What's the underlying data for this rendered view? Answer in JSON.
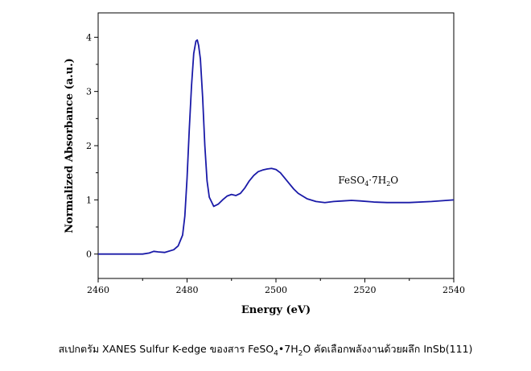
{
  "chart_data": {
    "type": "line",
    "xlabel": "Energy (eV)",
    "ylabel": "Normalized Absorbance (a.u.)",
    "xlim": [
      2460,
      2540
    ],
    "ylim": [
      -0.45,
      4.45
    ],
    "xticks": [
      2460,
      2480,
      2500,
      2520,
      2540
    ],
    "yticks": [
      0,
      1,
      2,
      3,
      4
    ],
    "grid": false,
    "line_color": "#1a1aa8",
    "annotation": {
      "label": "FeSO",
      "sub1": "4",
      "mid": "·7H",
      "sub2": "2",
      "end": "O",
      "x": 2514,
      "y": 1.3
    },
    "series": [
      {
        "x": [
          2460,
          2465,
          2470,
          2471.5,
          2472.5,
          2473.5,
          2475,
          2477,
          2478,
          2479,
          2479.5,
          2480,
          2480.5,
          2481,
          2481.5,
          2482,
          2482.3,
          2482.6,
          2483,
          2483.5,
          2484,
          2484.5,
          2485,
          2486,
          2487,
          2488,
          2489,
          2490,
          2491,
          2492,
          2493,
          2494,
          2495,
          2496,
          2497,
          2498,
          2499,
          2500,
          2501,
          2502,
          2503,
          2504,
          2505,
          2507,
          2509,
          2511,
          2513,
          2515,
          2517,
          2519,
          2522,
          2525,
          2530,
          2535,
          2540
        ],
        "y": [
          0.0,
          0.0,
          0.0,
          0.02,
          0.05,
          0.04,
          0.03,
          0.08,
          0.15,
          0.35,
          0.7,
          1.4,
          2.3,
          3.1,
          3.7,
          3.93,
          3.95,
          3.85,
          3.6,
          2.9,
          2.0,
          1.35,
          1.05,
          0.88,
          0.92,
          1.0,
          1.07,
          1.1,
          1.08,
          1.12,
          1.22,
          1.35,
          1.45,
          1.52,
          1.55,
          1.57,
          1.58,
          1.56,
          1.5,
          1.4,
          1.3,
          1.2,
          1.12,
          1.02,
          0.97,
          0.95,
          0.97,
          0.98,
          0.99,
          0.98,
          0.96,
          0.95,
          0.95,
          0.97,
          1.0
        ]
      }
    ]
  },
  "caption": {
    "before": "สเปกตรัม XANES Sulfur K-edge ของสาร FeSO",
    "sub1": "4",
    "mid": "•7H",
    "sub2": "2",
    "after": "O คัดเลือกพลังงานด้วยผลึก InSb(111)"
  }
}
